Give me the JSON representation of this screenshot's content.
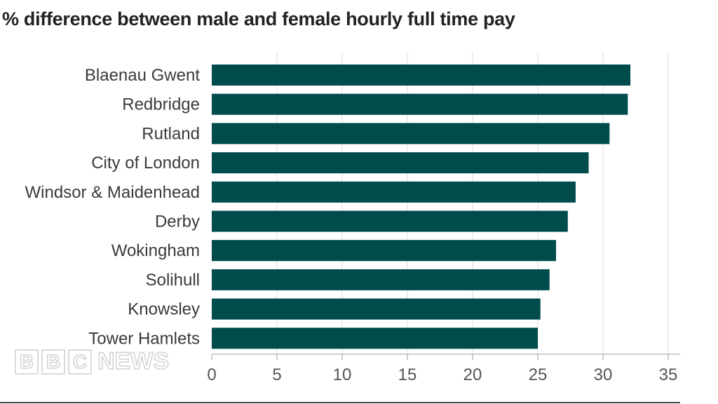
{
  "chart_data": {
    "type": "bar",
    "orientation": "horizontal",
    "title": "% difference between male and female hourly full time pay",
    "categories": [
      "Blaenau Gwent",
      "Redbridge",
      "Rutland",
      "City of London",
      "Windsor & Maidenhead",
      "Derby",
      "Wokingham",
      "Solihull",
      "Knowsley",
      "Tower Hamlets"
    ],
    "values": [
      32.1,
      31.9,
      30.5,
      28.9,
      27.9,
      27.3,
      26.4,
      25.9,
      25.2,
      25.0
    ],
    "xlim": [
      0,
      35
    ],
    "xticks": [
      0,
      5,
      10,
      15,
      20,
      25,
      30,
      35
    ],
    "grid": true,
    "legend": "none",
    "bar_color": "#004b4b",
    "grid_color": "#dcdcdc"
  },
  "branding": {
    "logo_blocks": [
      "B",
      "B",
      "C"
    ],
    "logo_word": "NEWS"
  }
}
